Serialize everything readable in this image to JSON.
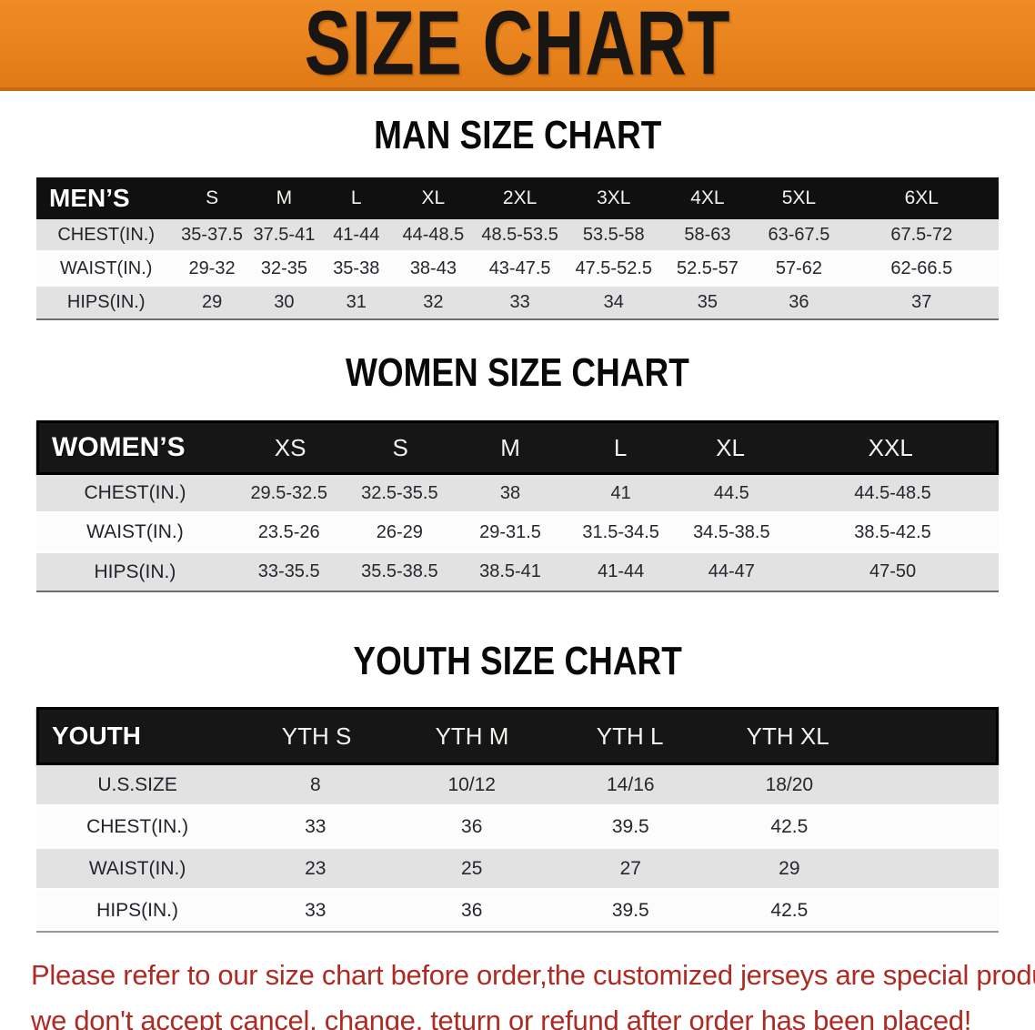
{
  "banner": {
    "title": "SIZE CHART",
    "bg_color": "#E8821D",
    "text_color": "#181512"
  },
  "sections": [
    {
      "id": "men",
      "title": "MAN SIZE CHART",
      "header_label": "MEN’S",
      "columns": [
        "S",
        "M",
        "L",
        "XL",
        "2XL",
        "3XL",
        "4XL",
        "5XL",
        "6XL"
      ],
      "rows": [
        {
          "label": "CHEST(IN.)",
          "values": [
            "35-37.5",
            "37.5-41",
            "41-44",
            "44-48.5",
            "48.5-53.5",
            "53.5-58",
            "58-63",
            "63-67.5",
            "67.5-72"
          ]
        },
        {
          "label": "WAIST(IN.)",
          "values": [
            "29-32",
            "32-35",
            "35-38",
            "38-43",
            "43-47.5",
            "47.5-52.5",
            "52.5-57",
            "57-62",
            "62-66.5"
          ]
        },
        {
          "label": "HIPS(IN.)",
          "values": [
            "29",
            "30",
            "31",
            "32",
            "33",
            "34",
            "35",
            "36",
            "37"
          ]
        }
      ]
    },
    {
      "id": "women",
      "title": "WOMEN SIZE CHART",
      "header_label": "WOMEN’S",
      "columns": [
        "XS",
        "S",
        "M",
        "L",
        "XL",
        "XXL"
      ],
      "rows": [
        {
          "label": "CHEST(IN.)",
          "values": [
            "29.5-32.5",
            "32.5-35.5",
            "38",
            "41",
            "44.5",
            "44.5-48.5"
          ]
        },
        {
          "label": "WAIST(IN.)",
          "values": [
            "23.5-26",
            "26-29",
            "29-31.5",
            "31.5-34.5",
            "34.5-38.5",
            "38.5-42.5"
          ]
        },
        {
          "label": "HIPS(IN.)",
          "values": [
            "33-35.5",
            "35.5-38.5",
            "38.5-41",
            "41-44",
            "44-47",
            "47-50"
          ]
        }
      ]
    },
    {
      "id": "youth",
      "title": "YOUTH SIZE CHART",
      "header_label": "YOUTH",
      "columns": [
        "YTH S",
        "YTH M",
        "YTH L",
        "YTH XL"
      ],
      "rows": [
        {
          "label": "U.S.SIZE",
          "values": [
            "8",
            "10/12",
            "14/16",
            "18/20"
          ]
        },
        {
          "label": "CHEST(IN.)",
          "values": [
            "33",
            "36",
            "39.5",
            "42.5"
          ]
        },
        {
          "label": "WAIST(IN.)",
          "values": [
            "23",
            "25",
            "27",
            "29"
          ]
        },
        {
          "label": "HIPS(IN.)",
          "values": [
            "33",
            "36",
            "39.5",
            "42.5"
          ]
        }
      ]
    }
  ],
  "disclaimer": {
    "line1": "Please refer to our size chart before order,the customized jerseys are special products,",
    "line2": "we don't accept cancel, change, teturn or refund after order has been placed!",
    "color": "#AE2B24"
  }
}
